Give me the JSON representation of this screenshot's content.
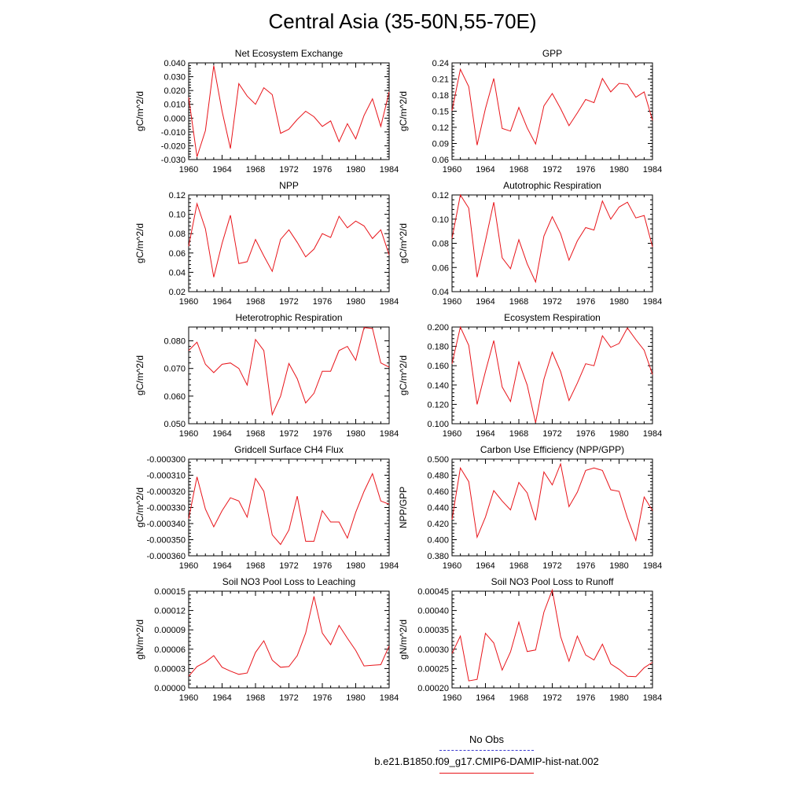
{
  "title": "Central Asia (35-50N,55-70E)",
  "colors": {
    "series": "#e8141a",
    "obs": "#3a3ad0",
    "axis": "#000000"
  },
  "legend": [
    {
      "label": "No Obs",
      "color": "#3a3ad0",
      "style": "dashed"
    },
    {
      "label": "b.e21.B1850.f09_g17.CMIP6-DAMIP-hist-nat.002",
      "color": "#e8141a",
      "style": "solid"
    }
  ],
  "chart_data": [
    {
      "type": "line",
      "title": "Net Ecosystem Exchange",
      "ylabel": "gC/m^2/d",
      "xlim": [
        1960,
        1984
      ],
      "ylim": [
        -0.03,
        0.04
      ],
      "yticks": [
        "-0.030",
        "-0.020",
        "-0.010",
        "0.000",
        "0.010",
        "0.020",
        "0.030",
        "0.040"
      ],
      "xticks": [
        "1960",
        "1964",
        "1968",
        "1972",
        "1976",
        "1980",
        "1984"
      ],
      "series": [
        {
          "x": [
            1960,
            1961,
            1962,
            1963,
            1964,
            1965,
            1966,
            1967,
            1968,
            1969,
            1970,
            1971,
            1972,
            1973,
            1974,
            1975,
            1976,
            1977,
            1978,
            1979,
            1980,
            1981,
            1982,
            1983,
            1984
          ],
          "values": [
            0.015,
            -0.028,
            -0.009,
            0.038,
            0.005,
            -0.022,
            0.025,
            0.016,
            0.01,
            0.022,
            0.017,
            -0.011,
            -0.008,
            -0.001,
            0.005,
            0.001,
            -0.006,
            -0.002,
            -0.017,
            -0.004,
            -0.015,
            0.002,
            0.014,
            -0.006,
            0.019
          ]
        }
      ]
    },
    {
      "type": "line",
      "title": "GPP",
      "ylabel": "gC/m^2/d",
      "xlim": [
        1960,
        1984
      ],
      "ylim": [
        0.06,
        0.24
      ],
      "yticks": [
        "0.06",
        "0.09",
        "0.12",
        "0.15",
        "0.18",
        "0.21",
        "0.24"
      ],
      "xticks": [
        "1960",
        "1964",
        "1968",
        "1972",
        "1976",
        "1980",
        "1984"
      ],
      "series": [
        {
          "x": [
            1960,
            1961,
            1962,
            1963,
            1964,
            1965,
            1966,
            1967,
            1968,
            1969,
            1970,
            1971,
            1972,
            1973,
            1974,
            1975,
            1976,
            1977,
            1978,
            1979,
            1980,
            1981,
            1982,
            1983,
            1984
          ],
          "values": [
            0.151,
            0.228,
            0.196,
            0.087,
            0.155,
            0.211,
            0.118,
            0.113,
            0.157,
            0.119,
            0.089,
            0.16,
            0.183,
            0.155,
            0.123,
            0.147,
            0.172,
            0.166,
            0.211,
            0.186,
            0.202,
            0.2,
            0.176,
            0.186,
            0.133
          ]
        }
      ]
    },
    {
      "type": "line",
      "title": "NPP",
      "ylabel": "gC/m^2/d",
      "xlim": [
        1960,
        1984
      ],
      "ylim": [
        0.02,
        0.12
      ],
      "yticks": [
        "0.02",
        "0.04",
        "0.06",
        "0.08",
        "0.10",
        "0.12"
      ],
      "xticks": [
        "1960",
        "1964",
        "1968",
        "1972",
        "1976",
        "1980",
        "1984"
      ],
      "series": [
        {
          "x": [
            1960,
            1961,
            1962,
            1963,
            1964,
            1965,
            1966,
            1967,
            1968,
            1969,
            1970,
            1971,
            1972,
            1973,
            1974,
            1975,
            1976,
            1977,
            1978,
            1979,
            1980,
            1981,
            1982,
            1983,
            1984
          ],
          "values": [
            0.067,
            0.111,
            0.085,
            0.035,
            0.07,
            0.099,
            0.049,
            0.051,
            0.074,
            0.057,
            0.041,
            0.074,
            0.084,
            0.071,
            0.056,
            0.064,
            0.08,
            0.076,
            0.098,
            0.086,
            0.093,
            0.088,
            0.075,
            0.084,
            0.058
          ]
        }
      ]
    },
    {
      "type": "line",
      "title": "Autotrophic Respiration",
      "ylabel": "gC/m^2/d",
      "xlim": [
        1960,
        1984
      ],
      "ylim": [
        0.04,
        0.12
      ],
      "yticks": [
        "0.04",
        "0.06",
        "0.08",
        "0.10",
        "0.12"
      ],
      "xticks": [
        "1960",
        "1964",
        "1968",
        "1972",
        "1976",
        "1980",
        "1984"
      ],
      "series": [
        {
          "x": [
            1960,
            1961,
            1962,
            1963,
            1964,
            1965,
            1966,
            1967,
            1968,
            1969,
            1970,
            1971,
            1972,
            1973,
            1974,
            1975,
            1976,
            1977,
            1978,
            1979,
            1980,
            1981,
            1982,
            1983,
            1984
          ],
          "values": [
            0.084,
            0.12,
            0.109,
            0.052,
            0.082,
            0.114,
            0.068,
            0.059,
            0.083,
            0.063,
            0.048,
            0.086,
            0.102,
            0.088,
            0.066,
            0.082,
            0.093,
            0.091,
            0.115,
            0.1,
            0.11,
            0.114,
            0.101,
            0.103,
            0.077
          ]
        }
      ]
    },
    {
      "type": "line",
      "title": "Heterotrophic Respiration",
      "ylabel": "gC/m^2/d",
      "xlim": [
        1960,
        1984
      ],
      "ylim": [
        0.05,
        0.085
      ],
      "yticks": [
        "0.050",
        "0.060",
        "0.070",
        "0.080"
      ],
      "xticks": [
        "1960",
        "1964",
        "1968",
        "1972",
        "1976",
        "1980",
        "1984"
      ],
      "series": [
        {
          "x": [
            1960,
            1961,
            1962,
            1963,
            1964,
            1965,
            1966,
            1967,
            1968,
            1969,
            1970,
            1971,
            1972,
            1973,
            1974,
            1975,
            1976,
            1977,
            1978,
            1979,
            1980,
            1981,
            1982,
            1983,
            1984
          ],
          "values": [
            0.0765,
            0.0795,
            0.0715,
            0.0685,
            0.0715,
            0.072,
            0.07,
            0.064,
            0.0805,
            0.0765,
            0.0533,
            0.06,
            0.0718,
            0.0663,
            0.0575,
            0.061,
            0.069,
            0.069,
            0.0765,
            0.078,
            0.073,
            0.0848,
            0.0845,
            0.072,
            0.0705
          ]
        }
      ]
    },
    {
      "type": "line",
      "title": "Ecosystem Respiration",
      "ylabel": "gC/m^2/d",
      "xlim": [
        1960,
        1984
      ],
      "ylim": [
        0.1,
        0.2
      ],
      "yticks": [
        "0.100",
        "0.120",
        "0.140",
        "0.160",
        "0.180",
        "0.200"
      ],
      "xticks": [
        "1960",
        "1964",
        "1968",
        "1972",
        "1976",
        "1980",
        "1984"
      ],
      "series": [
        {
          "x": [
            1960,
            1961,
            1962,
            1963,
            1964,
            1965,
            1966,
            1967,
            1968,
            1969,
            1970,
            1971,
            1972,
            1973,
            1974,
            1975,
            1976,
            1977,
            1978,
            1979,
            1980,
            1981,
            1982,
            1983,
            1984
          ],
          "values": [
            0.162,
            0.2,
            0.181,
            0.12,
            0.154,
            0.186,
            0.138,
            0.123,
            0.164,
            0.14,
            0.101,
            0.146,
            0.174,
            0.154,
            0.124,
            0.142,
            0.162,
            0.16,
            0.191,
            0.179,
            0.183,
            0.199,
            0.187,
            0.176,
            0.151
          ]
        }
      ]
    },
    {
      "type": "line",
      "title": "Gridcell Surface CH4 Flux",
      "ylabel": "gC/m^2/d",
      "xlim": [
        1960,
        1984
      ],
      "ylim": [
        -0.00036,
        -0.0003
      ],
      "yticks": [
        "-0.000360",
        "-0.000350",
        "-0.000340",
        "-0.000330",
        "-0.000320",
        "-0.000310",
        "-0.000300"
      ],
      "xticks": [
        "1960",
        "1964",
        "1968",
        "1972",
        "1976",
        "1980",
        "1984"
      ],
      "series": [
        {
          "x": [
            1960,
            1961,
            1962,
            1963,
            1964,
            1965,
            1966,
            1967,
            1968,
            1969,
            1970,
            1971,
            1972,
            1973,
            1974,
            1975,
            1976,
            1977,
            1978,
            1979,
            1980,
            1981,
            1982,
            1983,
            1984
          ],
          "values": [
            -0.000337,
            -0.000311,
            -0.000331,
            -0.000342,
            -0.000332,
            -0.000324,
            -0.000326,
            -0.000336,
            -0.000312,
            -0.00032,
            -0.000347,
            -0.000353,
            -0.000344,
            -0.000323,
            -0.000351,
            -0.000351,
            -0.000332,
            -0.000339,
            -0.000339,
            -0.000349,
            -0.000333,
            -0.00032,
            -0.000309,
            -0.000326,
            -0.000328
          ]
        }
      ]
    },
    {
      "type": "line",
      "title": "Carbon Use Efficiency (NPP/GPP)",
      "ylabel": "NPP/GPP",
      "xlim": [
        1960,
        1984
      ],
      "ylim": [
        0.38,
        0.5
      ],
      "yticks": [
        "0.380",
        "0.400",
        "0.420",
        "0.440",
        "0.460",
        "0.480",
        "0.500"
      ],
      "xticks": [
        "1960",
        "1964",
        "1968",
        "1972",
        "1976",
        "1980",
        "1984"
      ],
      "series": [
        {
          "x": [
            1960,
            1961,
            1962,
            1963,
            1964,
            1965,
            1966,
            1967,
            1968,
            1969,
            1970,
            1971,
            1972,
            1973,
            1974,
            1975,
            1976,
            1977,
            1978,
            1979,
            1980,
            1981,
            1982,
            1983,
            1984
          ],
          "values": [
            0.425,
            0.489,
            0.472,
            0.403,
            0.428,
            0.461,
            0.448,
            0.437,
            0.471,
            0.458,
            0.424,
            0.484,
            0.468,
            0.494,
            0.441,
            0.459,
            0.486,
            0.489,
            0.486,
            0.462,
            0.46,
            0.427,
            0.399,
            0.453,
            0.436
          ]
        }
      ]
    },
    {
      "type": "line",
      "title": "Soil NO3 Pool Loss to Leaching",
      "ylabel": "gN/m^2/d",
      "xlim": [
        1960,
        1984
      ],
      "ylim": [
        0.0,
        0.00015
      ],
      "yticks": [
        "0.00000",
        "0.00003",
        "0.00006",
        "0.00009",
        "0.00012",
        "0.00015"
      ],
      "xticks": [
        "1960",
        "1964",
        "1968",
        "1972",
        "1976",
        "1980",
        "1984"
      ],
      "series": [
        {
          "x": [
            1960,
            1961,
            1962,
            1963,
            1964,
            1965,
            1966,
            1967,
            1968,
            1969,
            1970,
            1971,
            1972,
            1973,
            1974,
            1975,
            1976,
            1977,
            1978,
            1979,
            1980,
            1981,
            1982,
            1983,
            1984
          ],
          "values": [
            1.8e-05,
            3.3e-05,
            4e-05,
            5e-05,
            3.2e-05,
            2.6e-05,
            2.1e-05,
            2.3e-05,
            5.5e-05,
            7.3e-05,
            4.3e-05,
            3.2e-05,
            3.3e-05,
            5e-05,
            8.5e-05,
            0.000142,
            8.5e-05,
            6.7e-05,
            9.7e-05,
            7.7e-05,
            5.8e-05,
            3.4e-05,
            3.5e-05,
            3.6e-05,
            6.5e-05
          ]
        }
      ]
    },
    {
      "type": "line",
      "title": "Soil NO3 Pool Loss to Runoff",
      "ylabel": "gN/m^2/d",
      "xlim": [
        1960,
        1984
      ],
      "ylim": [
        0.0002,
        0.00045
      ],
      "yticks": [
        "0.00020",
        "0.00025",
        "0.00030",
        "0.00035",
        "0.00040",
        "0.00045"
      ],
      "xticks": [
        "1960",
        "1964",
        "1968",
        "1972",
        "1976",
        "1980",
        "1984"
      ],
      "series": [
        {
          "x": [
            1960,
            1961,
            1962,
            1963,
            1964,
            1965,
            1966,
            1967,
            1968,
            1969,
            1970,
            1971,
            1972,
            1973,
            1974,
            1975,
            1976,
            1977,
            1978,
            1979,
            1980,
            1981,
            1982,
            1983,
            1984
          ],
          "values": [
            0.000289,
            0.000334,
            0.000218,
            0.000222,
            0.000341,
            0.000316,
            0.000246,
            0.000293,
            0.00037,
            0.000294,
            0.000298,
            0.000396,
            0.000453,
            0.000333,
            0.000269,
            0.000334,
            0.000285,
            0.000272,
            0.000313,
            0.000262,
            0.000248,
            0.00023,
            0.000229,
            0.000252,
            0.000266
          ]
        }
      ]
    }
  ]
}
